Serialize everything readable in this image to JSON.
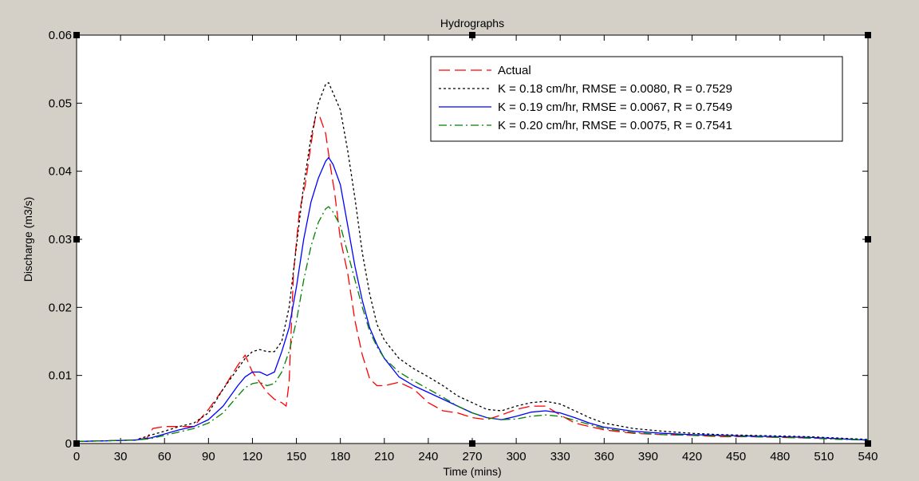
{
  "chart_data": {
    "type": "line",
    "title": "Hydrographs",
    "xlabel": "Time (mins)",
    "ylabel": "Discharge (m3/s)",
    "xlim": [
      0,
      540
    ],
    "ylim": [
      0,
      0.06
    ],
    "x_ticks": [
      0,
      30,
      60,
      90,
      120,
      150,
      180,
      210,
      240,
      270,
      300,
      330,
      360,
      390,
      420,
      450,
      480,
      510,
      540
    ],
    "y_ticks": [
      0,
      0.01,
      0.02,
      0.03,
      0.04,
      0.05,
      0.06
    ],
    "y_tick_labels": [
      "0",
      "0.01",
      "0.02",
      "0.03",
      "0.04",
      "0.05",
      "0.06"
    ],
    "grid": false,
    "legend_position": "top-right",
    "series": [
      {
        "name": "Actual",
        "color": "#ff0000",
        "dash": "long-dash",
        "x": [
          0,
          20,
          40,
          48,
          52,
          60,
          70,
          80,
          90,
          100,
          110,
          115,
          120,
          125,
          130,
          135,
          140,
          143,
          145,
          148,
          152,
          156,
          160,
          163,
          166,
          170,
          173,
          176,
          180,
          185,
          190,
          195,
          200,
          205,
          210,
          220,
          230,
          240,
          250,
          260,
          270,
          280,
          290,
          300,
          310,
          320,
          330,
          340,
          350,
          360,
          380,
          400,
          420,
          440,
          460,
          480,
          500,
          520,
          540
        ],
        "y": [
          0.0003,
          0.0004,
          0.0005,
          0.0008,
          0.0022,
          0.0025,
          0.0025,
          0.0025,
          0.005,
          0.008,
          0.0115,
          0.013,
          0.0105,
          0.009,
          0.0075,
          0.0065,
          0.006,
          0.0055,
          0.009,
          0.025,
          0.034,
          0.038,
          0.044,
          0.048,
          0.048,
          0.0455,
          0.041,
          0.037,
          0.03,
          0.025,
          0.018,
          0.013,
          0.0095,
          0.0085,
          0.0085,
          0.009,
          0.008,
          0.006,
          0.0048,
          0.0045,
          0.0038,
          0.0035,
          0.0042,
          0.005,
          0.0055,
          0.0055,
          0.0042,
          0.003,
          0.0025,
          0.002,
          0.0015,
          0.0013,
          0.0012,
          0.001,
          0.001,
          0.0009,
          0.0008,
          0.0007,
          0.0005
        ]
      },
      {
        "name": "K = 0.18 cm/hr, RMSE = 0.0080, R = 0.7529",
        "color": "#000000",
        "dash": "dotted",
        "x": [
          0,
          20,
          40,
          50,
          60,
          70,
          80,
          90,
          100,
          110,
          115,
          120,
          125,
          130,
          135,
          140,
          145,
          150,
          155,
          160,
          165,
          170,
          172,
          175,
          180,
          185,
          190,
          195,
          200,
          205,
          210,
          220,
          230,
          240,
          250,
          260,
          270,
          280,
          290,
          300,
          310,
          320,
          330,
          340,
          350,
          360,
          380,
          400,
          420,
          440,
          460,
          480,
          500,
          520,
          540
        ],
        "y": [
          0.0003,
          0.0004,
          0.0005,
          0.0012,
          0.0018,
          0.0025,
          0.003,
          0.0045,
          0.008,
          0.011,
          0.0125,
          0.0135,
          0.0138,
          0.0135,
          0.0135,
          0.015,
          0.02,
          0.029,
          0.038,
          0.045,
          0.05,
          0.0528,
          0.053,
          0.0515,
          0.049,
          0.043,
          0.036,
          0.028,
          0.022,
          0.0175,
          0.0152,
          0.0125,
          0.011,
          0.0098,
          0.0085,
          0.007,
          0.006,
          0.005,
          0.0048,
          0.0055,
          0.006,
          0.0062,
          0.0058,
          0.0048,
          0.0038,
          0.003,
          0.0022,
          0.0018,
          0.0015,
          0.0013,
          0.0012,
          0.0011,
          0.001,
          0.0008,
          0.0006
        ]
      },
      {
        "name": "K = 0.19 cm/hr, RMSE = 0.0067, R = 0.7549",
        "color": "#0000ff",
        "dash": "solid",
        "x": [
          0,
          20,
          40,
          50,
          60,
          70,
          80,
          90,
          100,
          110,
          115,
          120,
          125,
          130,
          135,
          140,
          145,
          150,
          155,
          160,
          165,
          170,
          172,
          175,
          180,
          185,
          190,
          195,
          200,
          205,
          210,
          220,
          230,
          240,
          250,
          260,
          270,
          280,
          290,
          300,
          310,
          320,
          330,
          340,
          350,
          360,
          380,
          400,
          420,
          440,
          460,
          480,
          500,
          520,
          540
        ],
        "y": [
          0.0003,
          0.0004,
          0.0005,
          0.0008,
          0.0014,
          0.002,
          0.0025,
          0.0035,
          0.0055,
          0.0085,
          0.0098,
          0.0105,
          0.0105,
          0.01,
          0.0105,
          0.0135,
          0.017,
          0.023,
          0.03,
          0.0355,
          0.039,
          0.0415,
          0.042,
          0.041,
          0.038,
          0.032,
          0.026,
          0.021,
          0.017,
          0.0145,
          0.0125,
          0.0098,
          0.0085,
          0.0075,
          0.0065,
          0.0055,
          0.0045,
          0.0038,
          0.0035,
          0.004,
          0.0046,
          0.0048,
          0.0045,
          0.0038,
          0.003,
          0.0024,
          0.0018,
          0.0015,
          0.0013,
          0.0012,
          0.0011,
          0.001,
          0.0009,
          0.0007,
          0.0005
        ]
      },
      {
        "name": "K = 0.20 cm/hr, RMSE = 0.0075, R = 0.7541",
        "color": "#008000",
        "dash": "dash-dot",
        "x": [
          0,
          20,
          40,
          50,
          60,
          70,
          80,
          90,
          100,
          110,
          115,
          120,
          125,
          130,
          135,
          140,
          145,
          150,
          155,
          160,
          165,
          170,
          172,
          175,
          180,
          185,
          190,
          195,
          200,
          205,
          210,
          220,
          230,
          240,
          250,
          260,
          270,
          280,
          290,
          300,
          310,
          320,
          330,
          340,
          350,
          360,
          380,
          400,
          420,
          440,
          460,
          480,
          500,
          520,
          540
        ],
        "y": [
          0.0003,
          0.0004,
          0.0005,
          0.0007,
          0.0012,
          0.0017,
          0.0022,
          0.003,
          0.0045,
          0.007,
          0.0082,
          0.0088,
          0.009,
          0.0085,
          0.0088,
          0.0105,
          0.0135,
          0.018,
          0.024,
          0.029,
          0.0325,
          0.0345,
          0.0348,
          0.034,
          0.032,
          0.028,
          0.024,
          0.02,
          0.0165,
          0.0142,
          0.0125,
          0.0105,
          0.0092,
          0.008,
          0.0068,
          0.0055,
          0.0045,
          0.0038,
          0.0035,
          0.0036,
          0.004,
          0.0042,
          0.004,
          0.0034,
          0.0028,
          0.0022,
          0.0016,
          0.0013,
          0.0012,
          0.0011,
          0.001,
          0.0009,
          0.0008,
          0.0006,
          0.0005
        ]
      }
    ]
  }
}
